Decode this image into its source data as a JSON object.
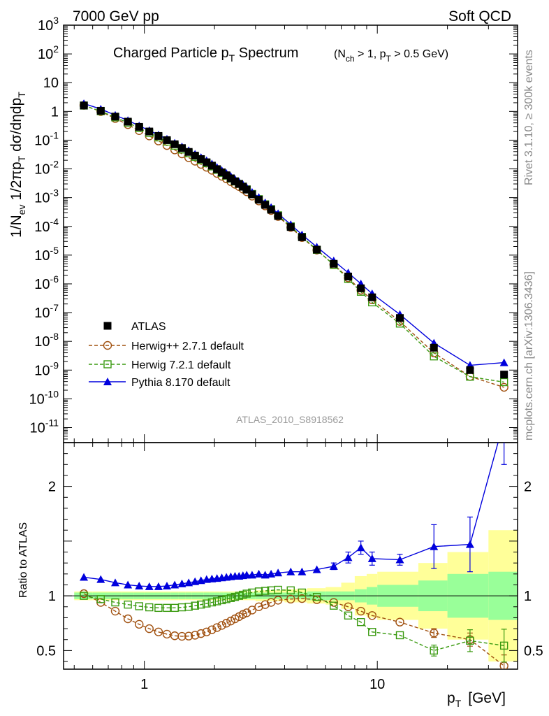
{
  "header": {
    "left": "7000 GeV pp",
    "right": "Soft QCD",
    "side_top": "Rivet 3.1.10, ≥ 300k events",
    "side_bottom": "mcplots.cern.ch [arXiv:1306.3436]"
  },
  "chart_data": {
    "type": "line",
    "title_main": "Charged Particle p",
    "title_main_sub": "T",
    "title_main_tail": " Spectrum",
    "title_cond_1": "(N",
    "title_cond_1_sub": "ch",
    "title_cond_2": " > 1, p",
    "title_cond_2_sub": "T",
    "title_cond_3": " > 0.5 GeV)",
    "analysis_id": "ATLAS_2010_S8918562",
    "xlabel": "p",
    "xlabel_sub": "T",
    "xlabel_unit": "[GeV]",
    "ylabel": "1/N_ev 1/2πp_T dσ/dηdp_T",
    "ylabel_parts": {
      "a": "1/N",
      "a_sub": "ev",
      "b": " 1/2πp",
      "b_sub": "T",
      "c": " dσ/dηdp",
      "c_sub": "T"
    },
    "ratio_ylabel": "Ratio to ATLAS",
    "x_scale": "log",
    "x_range": [
      0.45,
      40
    ],
    "x_tick_labels": [
      "1",
      "10"
    ],
    "main_y_scale": "log",
    "main_y_range": [
      3e-12,
      1000
    ],
    "main_y_tick_labels": [
      {
        "v": 1000,
        "base": "10",
        "exp": "3"
      },
      {
        "v": 100,
        "base": "10",
        "exp": "2"
      },
      {
        "v": 10,
        "base": "10",
        "exp": ""
      },
      {
        "v": 1,
        "base": "1",
        "exp": ""
      },
      {
        "v": 0.1,
        "base": "10",
        "exp": "-1"
      },
      {
        "v": 0.01,
        "base": "10",
        "exp": "-2"
      },
      {
        "v": 0.001,
        "base": "10",
        "exp": "-3"
      },
      {
        "v": 0.0001,
        "base": "10",
        "exp": "-4"
      },
      {
        "v": 1e-05,
        "base": "10",
        "exp": "-5"
      },
      {
        "v": 1e-06,
        "base": "10",
        "exp": "-6"
      },
      {
        "v": 1e-07,
        "base": "10",
        "exp": "-7"
      },
      {
        "v": 1e-08,
        "base": "10",
        "exp": "-8"
      },
      {
        "v": 1e-09,
        "base": "10",
        "exp": "-9"
      },
      {
        "v": 1e-10,
        "base": "10",
        "exp": "-10"
      },
      {
        "v": 1e-11,
        "base": "10",
        "exp": "-11"
      }
    ],
    "ratio_y_range": [
      0.33,
      2.4
    ],
    "ratio_y_tick_labels": [
      "0.5",
      "1",
      "2"
    ],
    "legend_position": "lower-left",
    "x": [
      0.55,
      0.65,
      0.75,
      0.85,
      0.95,
      1.05,
      1.15,
      1.25,
      1.35,
      1.45,
      1.55,
      1.65,
      1.75,
      1.85,
      1.95,
      2.05,
      2.15,
      2.25,
      2.35,
      2.45,
      2.55,
      2.65,
      2.75,
      2.9,
      3.1,
      3.3,
      3.5,
      3.75,
      4.25,
      4.75,
      5.5,
      6.5,
      7.5,
      8.5,
      9.5,
      12.5,
      17.5,
      25,
      35
    ],
    "atlas": [
      1.6,
      1.05,
      0.66,
      0.44,
      0.29,
      0.2,
      0.14,
      0.1,
      0.072,
      0.053,
      0.039,
      0.029,
      0.022,
      0.017,
      0.013,
      0.0098,
      0.0076,
      0.006,
      0.0047,
      0.0037,
      0.003,
      0.0024,
      0.0019,
      0.0013,
      0.00085,
      0.00056,
      0.00038,
      0.00023,
      9.5e-05,
      4.2e-05,
      1.55e-05,
      5e-06,
      1.8e-06,
      7e-07,
      3.4e-07,
      6.5e-08,
      6e-09,
      1e-09,
      7e-10
    ],
    "series": [
      {
        "name": "ATLAS",
        "color": "#000000",
        "marker": "square-filled"
      },
      {
        "name": "Herwig++ 2.7.1 default",
        "color": "#a0500f",
        "marker": "circle-open",
        "dashed": true,
        "ratio": [
          1.02,
          0.94,
          0.86,
          0.79,
          0.74,
          0.7,
          0.67,
          0.65,
          0.635,
          0.63,
          0.632,
          0.64,
          0.655,
          0.67,
          0.69,
          0.71,
          0.73,
          0.75,
          0.77,
          0.79,
          0.81,
          0.83,
          0.845,
          0.87,
          0.9,
          0.92,
          0.94,
          0.96,
          0.97,
          0.975,
          0.965,
          0.94,
          0.9,
          0.86,
          0.82,
          0.76,
          0.66,
          0.6,
          0.36
        ],
        "ratio_err": [
          0.01,
          0.01,
          0.01,
          0.01,
          0.01,
          0.01,
          0.01,
          0.01,
          0.01,
          0.01,
          0.01,
          0.01,
          0.01,
          0.01,
          0.01,
          0.01,
          0.01,
          0.01,
          0.01,
          0.01,
          0.01,
          0.01,
          0.01,
          0.01,
          0.01,
          0.01,
          0.01,
          0.01,
          0.01,
          0.01,
          0.01,
          0.01,
          0.01,
          0.01,
          0.015,
          0.02,
          0.04,
          0.06,
          0.1
        ]
      },
      {
        "name": "Herwig 7.2.1 default",
        "color": "#3a9a10",
        "marker": "square-open",
        "dashed": true,
        "ratio": [
          1.0,
          0.97,
          0.94,
          0.92,
          0.905,
          0.895,
          0.89,
          0.89,
          0.89,
          0.895,
          0.9,
          0.91,
          0.92,
          0.93,
          0.94,
          0.95,
          0.96,
          0.97,
          0.98,
          0.99,
          1.0,
          1.01,
          1.02,
          1.03,
          1.04,
          1.045,
          1.05,
          1.055,
          1.05,
          1.03,
          0.99,
          0.91,
          0.82,
          0.76,
          0.67,
          0.64,
          0.5,
          0.59,
          0.545
        ],
        "ratio_err": [
          0.01,
          0.01,
          0.01,
          0.01,
          0.01,
          0.01,
          0.01,
          0.01,
          0.01,
          0.01,
          0.01,
          0.01,
          0.01,
          0.01,
          0.01,
          0.01,
          0.01,
          0.01,
          0.01,
          0.01,
          0.01,
          0.01,
          0.01,
          0.01,
          0.01,
          0.01,
          0.01,
          0.01,
          0.01,
          0.01,
          0.01,
          0.01,
          0.01,
          0.015,
          0.02,
          0.02,
          0.05,
          0.1,
          0.15
        ]
      },
      {
        "name": "Pythia 8.170 default",
        "color": "#0000dd",
        "marker": "triangle-filled",
        "dashed": false,
        "ratio": [
          1.17,
          1.15,
          1.12,
          1.1,
          1.09,
          1.085,
          1.085,
          1.09,
          1.1,
          1.11,
          1.12,
          1.13,
          1.14,
          1.15,
          1.155,
          1.16,
          1.165,
          1.17,
          1.175,
          1.18,
          1.18,
          1.185,
          1.19,
          1.19,
          1.2,
          1.19,
          1.2,
          1.21,
          1.22,
          1.22,
          1.24,
          1.27,
          1.35,
          1.44,
          1.34,
          1.33,
          1.45,
          1.47,
          2.6
        ],
        "ratio_err": [
          0.01,
          0.01,
          0.01,
          0.01,
          0.01,
          0.01,
          0.01,
          0.01,
          0.01,
          0.01,
          0.01,
          0.01,
          0.01,
          0.01,
          0.01,
          0.01,
          0.01,
          0.01,
          0.01,
          0.01,
          0.01,
          0.01,
          0.01,
          0.01,
          0.01,
          0.01,
          0.01,
          0.01,
          0.01,
          0.015,
          0.02,
          0.03,
          0.05,
          0.06,
          0.06,
          0.05,
          0.2,
          0.25,
          0.4
        ]
      }
    ],
    "band_edges": [
      0.5,
      0.6,
      0.7,
      0.8,
      0.9,
      1.0,
      1.1,
      1.2,
      1.3,
      1.4,
      1.5,
      1.6,
      1.7,
      1.8,
      1.9,
      2.0,
      2.1,
      2.2,
      2.3,
      2.4,
      2.5,
      2.6,
      2.7,
      2.8,
      3.0,
      3.2,
      3.4,
      3.6,
      4.0,
      4.5,
      5.0,
      6.0,
      7.0,
      8.0,
      9.0,
      10.0,
      15.0,
      20.0,
      30.0,
      40.0
    ],
    "band_stat": [
      0.03,
      0.03,
      0.03,
      0.03,
      0.03,
      0.03,
      0.03,
      0.03,
      0.03,
      0.03,
      0.03,
      0.03,
      0.03,
      0.03,
      0.03,
      0.03,
      0.03,
      0.03,
      0.03,
      0.03,
      0.03,
      0.03,
      0.03,
      0.03,
      0.03,
      0.03,
      0.03,
      0.03,
      0.03,
      0.03,
      0.04,
      0.04,
      0.04,
      0.06,
      0.08,
      0.1,
      0.14,
      0.2,
      0.22
    ],
    "band_tot": [
      0.04,
      0.04,
      0.04,
      0.04,
      0.04,
      0.04,
      0.04,
      0.04,
      0.04,
      0.04,
      0.04,
      0.04,
      0.04,
      0.04,
      0.04,
      0.04,
      0.04,
      0.04,
      0.04,
      0.04,
      0.04,
      0.04,
      0.04,
      0.04,
      0.05,
      0.05,
      0.05,
      0.05,
      0.06,
      0.06,
      0.07,
      0.08,
      0.12,
      0.18,
      0.2,
      0.22,
      0.3,
      0.4,
      0.6
    ]
  }
}
